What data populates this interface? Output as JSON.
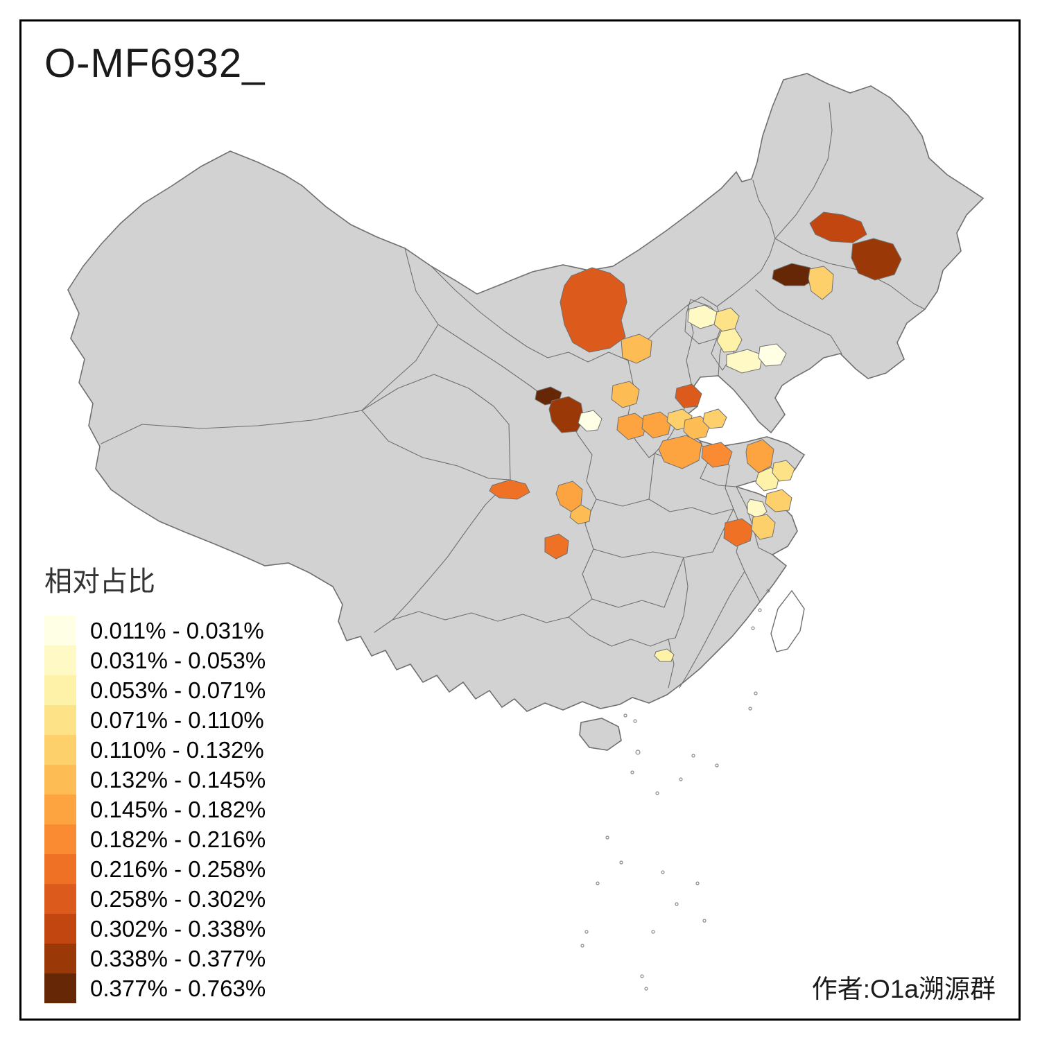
{
  "title": "O-MF6932_",
  "attribution": "作者:O1a溯源群",
  "legend": {
    "title": "相对占比",
    "classes": [
      {
        "label": "0.011% - 0.031%",
        "color": "#FFFFE5"
      },
      {
        "label": "0.031% - 0.053%",
        "color": "#FFF9C6"
      },
      {
        "label": "0.053% - 0.071%",
        "color": "#FEF2A8"
      },
      {
        "label": "0.071% - 0.110%",
        "color": "#FEE287"
      },
      {
        "label": "0.110% - 0.132%",
        "color": "#FED06B"
      },
      {
        "label": "0.132% - 0.145%",
        "color": "#FEBC54"
      },
      {
        "label": "0.145% - 0.182%",
        "color": "#FDA440"
      },
      {
        "label": "0.182% - 0.216%",
        "color": "#FB8B32"
      },
      {
        "label": "0.216% - 0.258%",
        "color": "#EE7126"
      },
      {
        "label": "0.258% - 0.302%",
        "color": "#DC5A1B"
      },
      {
        "label": "0.302% - 0.338%",
        "color": "#C24610"
      },
      {
        "label": "0.338% - 0.377%",
        "color": "#9B3807"
      },
      {
        "label": "0.377% - 0.763%",
        "color": "#662706"
      }
    ]
  },
  "map": {
    "base_fill": "#d2d2d2",
    "boundary_color": "#6f6f6f",
    "regions": [
      {
        "id": "region-01",
        "color": "#C24610"
      },
      {
        "id": "region-02",
        "color": "#9B3807"
      },
      {
        "id": "region-03",
        "color": "#662706"
      },
      {
        "id": "region-04",
        "color": "#FED06B"
      },
      {
        "id": "region-05",
        "color": "#DC5A1B"
      },
      {
        "id": "region-06",
        "color": "#FFF9C6"
      },
      {
        "id": "region-07",
        "color": "#FEE287"
      },
      {
        "id": "region-08",
        "color": "#FEF2A8"
      },
      {
        "id": "region-09",
        "color": "#FEBC54"
      },
      {
        "id": "region-10",
        "color": "#FEBC54"
      },
      {
        "id": "region-11",
        "color": "#DC5A1B"
      },
      {
        "id": "region-12",
        "color": "#FB8B32"
      },
      {
        "id": "region-13",
        "color": "#FFF9C6"
      },
      {
        "id": "region-14",
        "color": "#FFFFE5"
      },
      {
        "id": "region-15",
        "color": "#662706"
      },
      {
        "id": "region-16",
        "color": "#9B3807"
      },
      {
        "id": "region-17",
        "color": "#FFFFE5"
      },
      {
        "id": "region-18",
        "color": "#FDA440"
      },
      {
        "id": "region-19",
        "color": "#FDA440"
      },
      {
        "id": "region-20",
        "color": "#FED06B"
      },
      {
        "id": "region-21",
        "color": "#FEBC54"
      },
      {
        "id": "region-22",
        "color": "#FED06B"
      },
      {
        "id": "region-23",
        "color": "#FDA440"
      },
      {
        "id": "region-24",
        "color": "#FDA440"
      },
      {
        "id": "region-25",
        "color": "#FEF2A8"
      },
      {
        "id": "region-26",
        "color": "#FEE287"
      },
      {
        "id": "region-27",
        "color": "#FED06B"
      },
      {
        "id": "region-28",
        "color": "#FFF9C6"
      },
      {
        "id": "region-29",
        "color": "#EE7126"
      },
      {
        "id": "region-30",
        "color": "#FDA440"
      },
      {
        "id": "region-31",
        "color": "#FEBC54"
      },
      {
        "id": "region-32",
        "color": "#EE7126"
      },
      {
        "id": "region-33",
        "color": "#EE7126"
      },
      {
        "id": "region-34",
        "color": "#FED06B"
      },
      {
        "id": "region-35",
        "color": "#FEF2A8"
      }
    ]
  }
}
